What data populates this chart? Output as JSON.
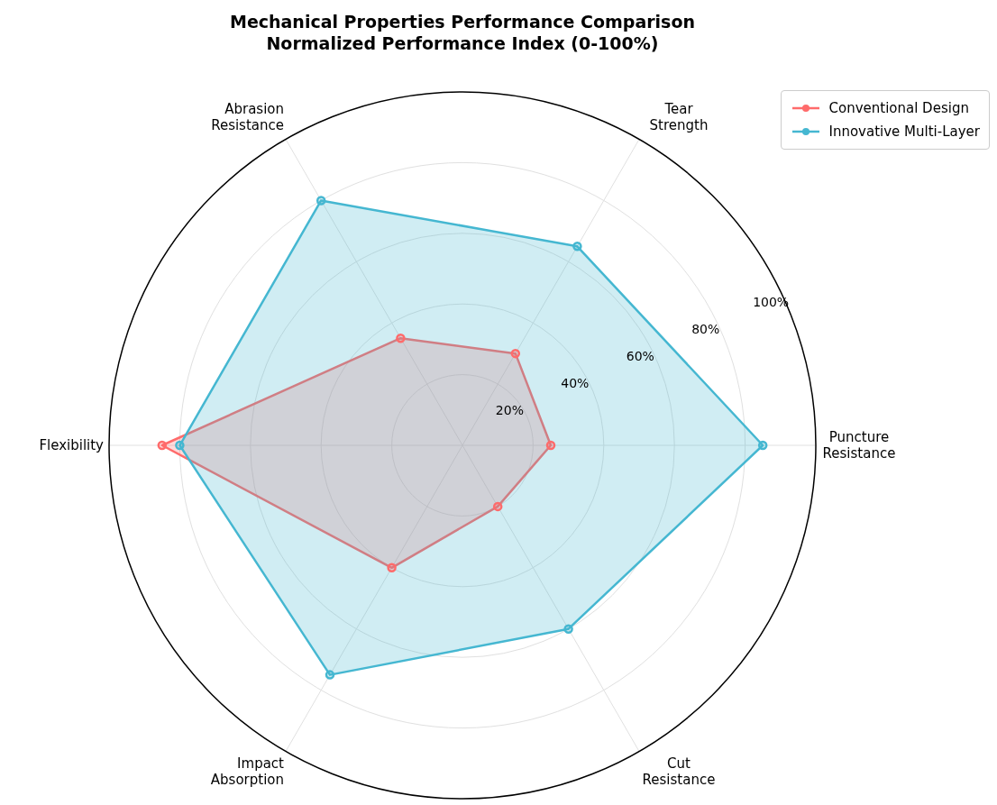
{
  "chart_data": {
    "type": "radar",
    "title": "Mechanical Properties Performance Comparison\nNormalized Performance Index (0-100%)",
    "categories": [
      "Tear\nStrength",
      "Puncture\nResistance",
      "Cut\nResistance",
      "Impact\nAbsorption",
      "Flexibility",
      "Abrasion\nResistance"
    ],
    "series": [
      {
        "name": "Conventional Design",
        "color": "#ff6b6b",
        "values": [
          30,
          25,
          20,
          40,
          85,
          35
        ]
      },
      {
        "name": "Innovative Multi-Layer",
        "color": "#45b7d1",
        "values": [
          65,
          85,
          60,
          75,
          80,
          80
        ]
      }
    ],
    "ylim": [
      0,
      100
    ],
    "yticks": [
      {
        "value": 20,
        "label": "20%"
      },
      {
        "value": 40,
        "label": "40%"
      },
      {
        "value": 60,
        "label": "60%"
      },
      {
        "value": 80,
        "label": "80%"
      },
      {
        "value": 100,
        "label": "100%"
      }
    ],
    "grid": true,
    "legend": "top right",
    "marker": "circle",
    "line_style": "solid"
  }
}
